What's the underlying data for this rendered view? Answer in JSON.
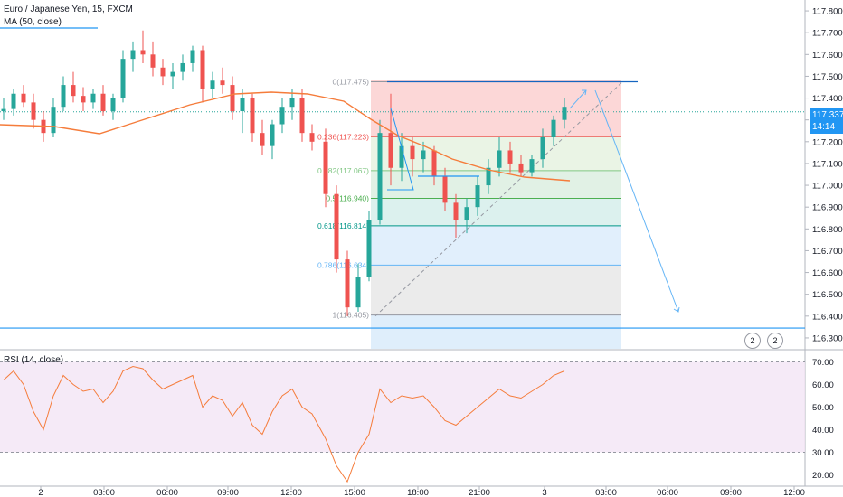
{
  "header": {
    "title": "Euro / Japanese Yen, 15, FXCM",
    "ma_label": "MA (50, close)",
    "rsi_label": "RSI (14, close)"
  },
  "price_scale": {
    "ticks": [
      "117.800",
      "117.700",
      "117.600",
      "117.500",
      "117.400",
      "117.300",
      "117.200",
      "117.100",
      "117.000",
      "116.900",
      "116.800",
      "116.700",
      "116.600",
      "116.500",
      "116.400",
      "116.300"
    ],
    "last_price": "117.337",
    "countdown": "14:14"
  },
  "rsi_scale": {
    "ticks": [
      "70.00",
      "60.00",
      "50.00",
      "40.00",
      "30.00",
      "20.00"
    ]
  },
  "time_axis": {
    "ticks": [
      "2",
      "03:00",
      "06:00",
      "09:00",
      "12:00",
      "15:00",
      "18:00",
      "21:00",
      "3",
      "03:00",
      "06:00",
      "09:00",
      "12:00"
    ]
  },
  "fib": {
    "levels": [
      {
        "ratio": "0",
        "price": "117.475",
        "label": "0(117.475)"
      },
      {
        "ratio": "0.236",
        "price": "117.223",
        "label": "0.236(117.223)"
      },
      {
        "ratio": "0.382",
        "price": "117.067",
        "label": "0.382(117.067)"
      },
      {
        "ratio": "0.5",
        "price": "116.940",
        "label": "0.5(116.940)"
      },
      {
        "ratio": "0.618",
        "price": "116.814",
        "label": "0.618(116.814)"
      },
      {
        "ratio": "0.786",
        "price": "116.634",
        "label": "0.786(116.634)"
      },
      {
        "ratio": "1",
        "price": "116.405",
        "label": "1(116.405)"
      }
    ]
  },
  "badges": {
    "alert_count_a": "2",
    "alert_count_b": "2"
  },
  "colors": {
    "up": "#26a69a",
    "down": "#ef5350",
    "ma": "#f57c3b",
    "rsi": "#f57c3b",
    "accent": "#2196f3"
  },
  "chart_data": [
    {
      "type": "candlestick",
      "title": "Euro / Japanese Yen, 15, FXCM",
      "ylim": [
        116.25,
        117.85
      ],
      "ma_period": 50,
      "series": [
        {
          "open": 117.34,
          "high": 117.4,
          "low": 117.3,
          "close": 117.35
        },
        {
          "open": 117.35,
          "high": 117.44,
          "low": 117.32,
          "close": 117.42
        },
        {
          "open": 117.42,
          "high": 117.46,
          "low": 117.36,
          "close": 117.38
        },
        {
          "open": 117.38,
          "high": 117.42,
          "low": 117.26,
          "close": 117.3
        },
        {
          "open": 117.3,
          "high": 117.34,
          "low": 117.2,
          "close": 117.24
        },
        {
          "open": 117.24,
          "high": 117.4,
          "low": 117.22,
          "close": 117.36
        },
        {
          "open": 117.36,
          "high": 117.5,
          "low": 117.34,
          "close": 117.46
        },
        {
          "open": 117.46,
          "high": 117.52,
          "low": 117.38,
          "close": 117.41
        },
        {
          "open": 117.41,
          "high": 117.45,
          "low": 117.34,
          "close": 117.38
        },
        {
          "open": 117.38,
          "high": 117.44,
          "low": 117.35,
          "close": 117.42
        },
        {
          "open": 117.42,
          "high": 117.46,
          "low": 117.32,
          "close": 117.34
        },
        {
          "open": 117.34,
          "high": 117.42,
          "low": 117.3,
          "close": 117.4
        },
        {
          "open": 117.4,
          "high": 117.62,
          "low": 117.38,
          "close": 117.58
        },
        {
          "open": 117.58,
          "high": 117.66,
          "low": 117.52,
          "close": 117.62
        },
        {
          "open": 117.62,
          "high": 117.71,
          "low": 117.56,
          "close": 117.6
        },
        {
          "open": 117.6,
          "high": 117.66,
          "low": 117.5,
          "close": 117.54
        },
        {
          "open": 117.54,
          "high": 117.58,
          "low": 117.46,
          "close": 117.5
        },
        {
          "open": 117.5,
          "high": 117.56,
          "low": 117.44,
          "close": 117.52
        },
        {
          "open": 117.52,
          "high": 117.6,
          "low": 117.48,
          "close": 117.56
        },
        {
          "open": 117.56,
          "high": 117.64,
          "low": 117.52,
          "close": 117.62
        },
        {
          "open": 117.62,
          "high": 117.64,
          "low": 117.38,
          "close": 117.44
        },
        {
          "open": 117.44,
          "high": 117.52,
          "low": 117.4,
          "close": 117.48
        },
        {
          "open": 117.48,
          "high": 117.54,
          "low": 117.42,
          "close": 117.46
        },
        {
          "open": 117.46,
          "high": 117.5,
          "low": 117.3,
          "close": 117.34
        },
        {
          "open": 117.34,
          "high": 117.44,
          "low": 117.24,
          "close": 117.4
        },
        {
          "open": 117.4,
          "high": 117.42,
          "low": 117.2,
          "close": 117.24
        },
        {
          "open": 117.24,
          "high": 117.3,
          "low": 117.14,
          "close": 117.18
        },
        {
          "open": 117.18,
          "high": 117.3,
          "low": 117.12,
          "close": 117.28
        },
        {
          "open": 117.28,
          "high": 117.4,
          "low": 117.24,
          "close": 117.36
        },
        {
          "open": 117.36,
          "high": 117.44,
          "low": 117.3,
          "close": 117.4
        },
        {
          "open": 117.4,
          "high": 117.44,
          "low": 117.2,
          "close": 117.24
        },
        {
          "open": 117.24,
          "high": 117.28,
          "low": 117.16,
          "close": 117.2
        },
        {
          "open": 117.2,
          "high": 117.26,
          "low": 116.9,
          "close": 116.96
        },
        {
          "open": 116.96,
          "high": 117.0,
          "low": 116.6,
          "close": 116.66
        },
        {
          "open": 116.66,
          "high": 116.7,
          "low": 116.4,
          "close": 116.44
        },
        {
          "open": 116.44,
          "high": 116.64,
          "low": 116.42,
          "close": 116.58
        },
        {
          "open": 116.58,
          "high": 116.88,
          "low": 116.56,
          "close": 116.84
        },
        {
          "open": 116.84,
          "high": 117.3,
          "low": 116.82,
          "close": 117.24
        },
        {
          "open": 117.24,
          "high": 117.42,
          "low": 117.0,
          "close": 117.08
        },
        {
          "open": 117.08,
          "high": 117.24,
          "low": 117.02,
          "close": 117.18
        },
        {
          "open": 117.18,
          "high": 117.22,
          "low": 117.04,
          "close": 117.12
        },
        {
          "open": 117.12,
          "high": 117.2,
          "low": 117.06,
          "close": 117.16
        },
        {
          "open": 117.16,
          "high": 117.18,
          "low": 117.0,
          "close": 117.04
        },
        {
          "open": 117.04,
          "high": 117.08,
          "low": 116.88,
          "close": 116.92
        },
        {
          "open": 116.92,
          "high": 116.96,
          "low": 116.76,
          "close": 116.84
        },
        {
          "open": 116.84,
          "high": 116.94,
          "low": 116.78,
          "close": 116.9
        },
        {
          "open": 116.9,
          "high": 117.04,
          "low": 116.86,
          "close": 117.0
        },
        {
          "open": 117.0,
          "high": 117.12,
          "low": 116.96,
          "close": 117.08
        },
        {
          "open": 117.08,
          "high": 117.22,
          "low": 117.04,
          "close": 117.16
        },
        {
          "open": 117.16,
          "high": 117.2,
          "low": 117.06,
          "close": 117.1
        },
        {
          "open": 117.1,
          "high": 117.14,
          "low": 117.04,
          "close": 117.06
        },
        {
          "open": 117.06,
          "high": 117.14,
          "low": 117.04,
          "close": 117.12
        },
        {
          "open": 117.12,
          "high": 117.26,
          "low": 117.08,
          "close": 117.22
        },
        {
          "open": 117.22,
          "high": 117.32,
          "low": 117.18,
          "close": 117.3
        },
        {
          "open": 117.3,
          "high": 117.4,
          "low": 117.26,
          "close": 117.36
        }
      ]
    },
    {
      "type": "line",
      "title": "RSI (14, close)",
      "ylim": [
        15,
        75
      ],
      "bands": [
        30,
        70
      ],
      "series": [
        {
          "name": "RSI",
          "values": [
            62,
            66,
            60,
            48,
            40,
            55,
            64,
            60,
            57,
            58,
            52,
            57,
            66,
            68,
            67,
            62,
            58,
            60,
            62,
            64,
            50,
            55,
            53,
            46,
            52,
            42,
            38,
            48,
            55,
            58,
            50,
            47,
            36,
            24,
            17,
            30,
            38,
            58,
            52,
            55,
            54,
            55,
            50,
            44,
            42,
            46,
            50,
            54,
            58,
            55,
            54,
            57,
            60,
            64,
            66
          ]
        }
      ]
    }
  ]
}
